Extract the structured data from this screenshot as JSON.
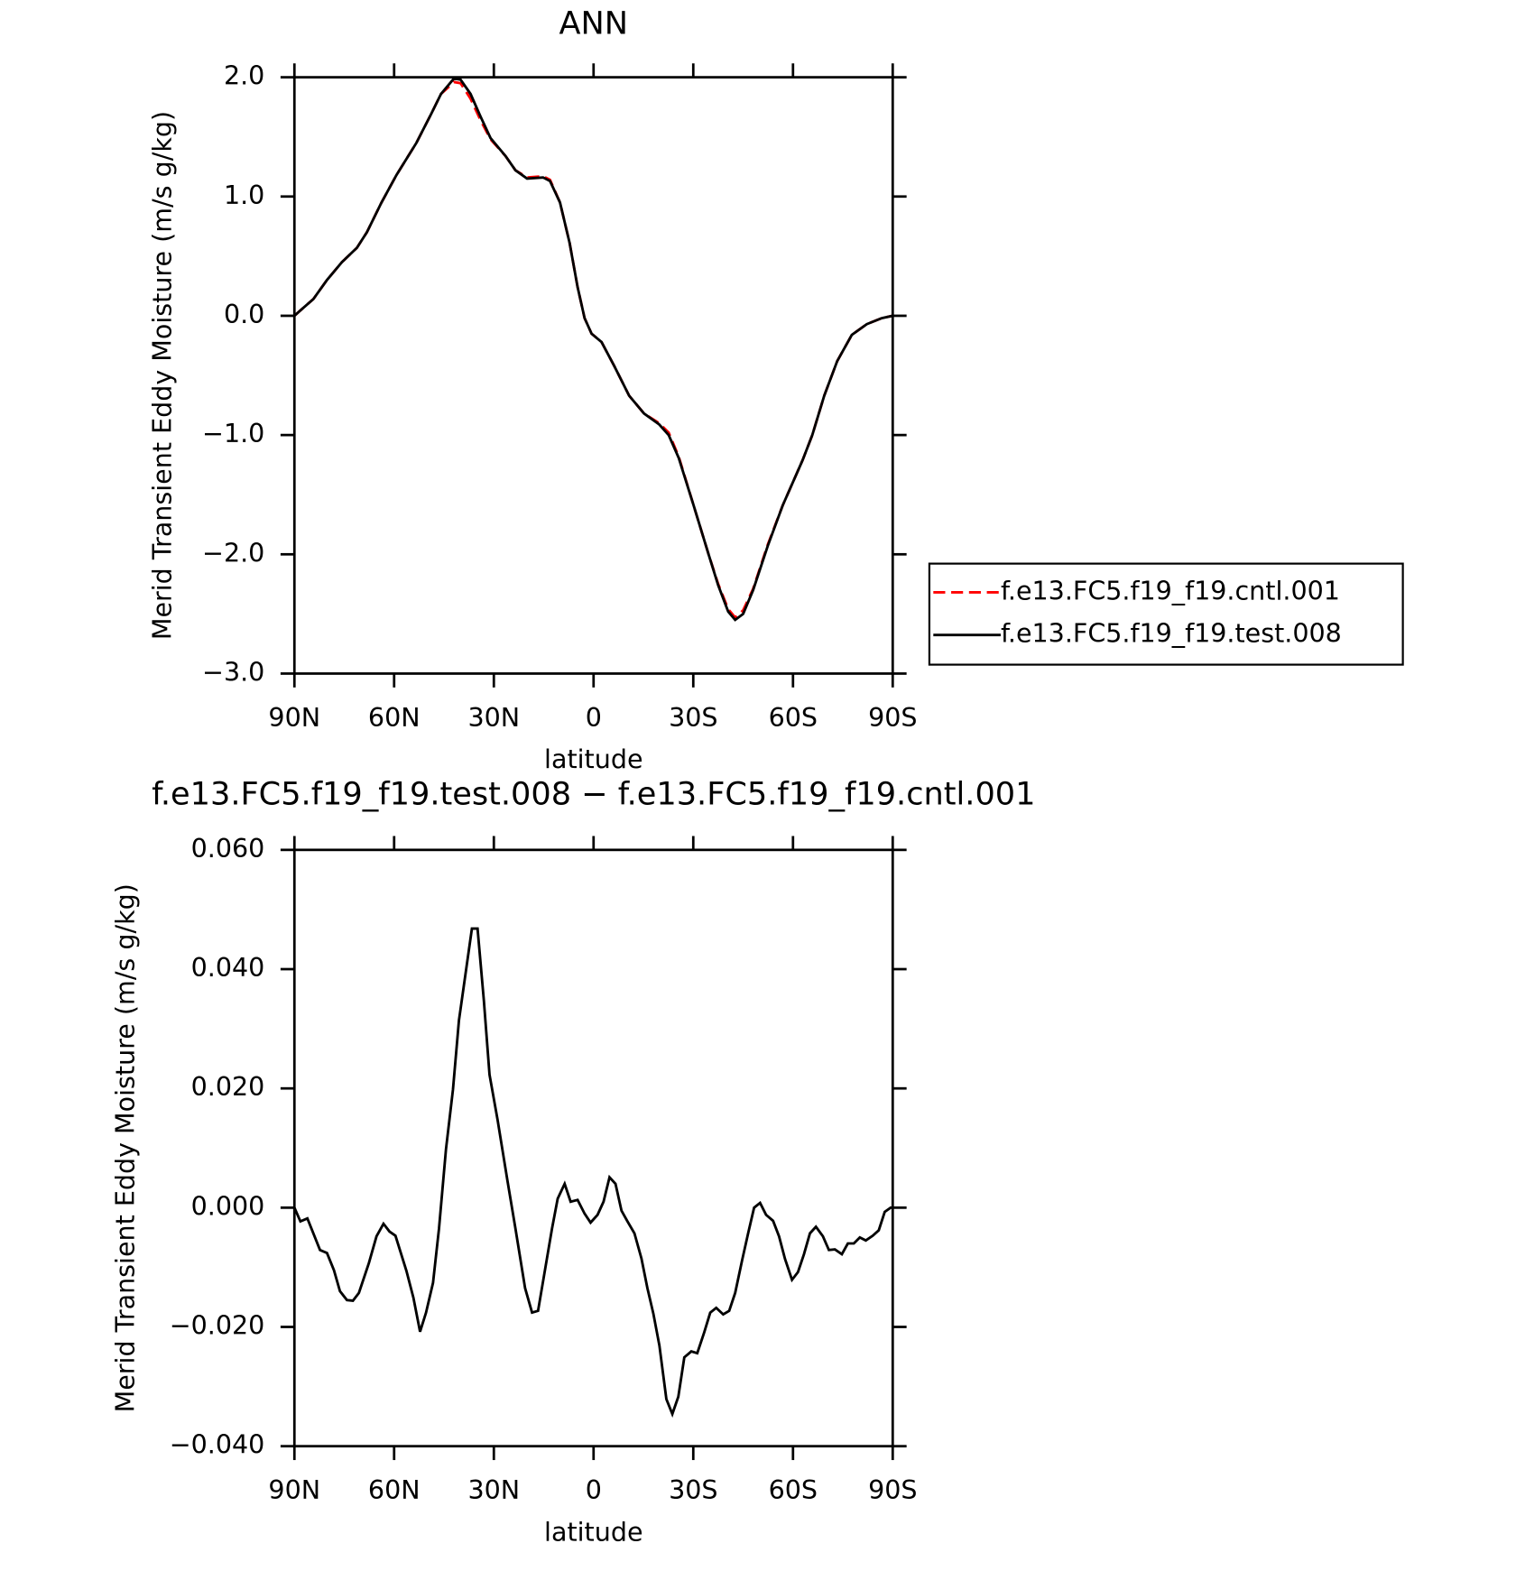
{
  "chart_data": [
    {
      "type": "line",
      "title": "ANN",
      "xlabel": "latitude",
      "ylabel": "Merid Transient Eddy Moisture (m/s g/kg)",
      "x": [
        90,
        87.6,
        84.3,
        80.2,
        75.7,
        71.2,
        68.2,
        63.8,
        59.3,
        53.3,
        48.9,
        45.9,
        42,
        40,
        37,
        34,
        31,
        26.5,
        23.5,
        20,
        15.2,
        13.1,
        10.1,
        7.2,
        4.8,
        2.7,
        0.6,
        -2.4,
        -6.2,
        -10.7,
        -15.2,
        -19.7,
        -22.6,
        -25.6,
        -30.1,
        -34.6,
        -37.5,
        -40.5,
        -42.6,
        -45,
        -48,
        -52.4,
        -56.9,
        -62.9,
        -65.8,
        -69.4,
        -73.3,
        -77.7,
        -82.2,
        -86.7,
        -90
      ],
      "series": [
        {
          "name": "f.e13.FC5.f19_f19.cntl.001",
          "color": "#ff0000",
          "style": "dashed",
          "values": [
            0,
            0.06,
            0.14,
            0.3,
            0.45,
            0.57,
            0.7,
            0.95,
            1.18,
            1.45,
            1.69,
            1.86,
            1.96,
            1.95,
            1.82,
            1.64,
            1.48,
            1.34,
            1.22,
            1.16,
            1.17,
            1.14,
            0.95,
            0.61,
            0.24,
            -0.02,
            -0.15,
            -0.22,
            -0.42,
            -0.67,
            -0.82,
            -0.9,
            -0.98,
            -1.18,
            -1.59,
            -2.0,
            -2.25,
            -2.46,
            -2.53,
            -2.47,
            -2.29,
            -1.92,
            -1.59,
            -1.21,
            -1.0,
            -0.67,
            -0.38,
            -0.16,
            -0.07,
            -0.02,
            0
          ]
        },
        {
          "name": "f.e13.FC5.f19_f19.test.008",
          "color": "#000000",
          "style": "solid",
          "values": [
            0,
            0.06,
            0.14,
            0.3,
            0.45,
            0.57,
            0.7,
            0.95,
            1.18,
            1.45,
            1.69,
            1.86,
            1.99,
            1.98,
            1.86,
            1.67,
            1.49,
            1.34,
            1.22,
            1.15,
            1.16,
            1.13,
            0.95,
            0.61,
            0.24,
            -0.02,
            -0.15,
            -0.22,
            -0.42,
            -0.67,
            -0.82,
            -0.91,
            -1.0,
            -1.19,
            -1.59,
            -2.0,
            -2.26,
            -2.48,
            -2.55,
            -2.5,
            -2.3,
            -1.93,
            -1.59,
            -1.21,
            -1.0,
            -0.67,
            -0.38,
            -0.16,
            -0.07,
            -0.02,
            0
          ]
        }
      ],
      "xlim": [
        90,
        -90
      ],
      "xticks": [
        {
          "value": 90,
          "label": "90N"
        },
        {
          "value": 60,
          "label": "60N"
        },
        {
          "value": 30,
          "label": "30N"
        },
        0,
        {
          "value": -30,
          "label": "30S"
        },
        {
          "value": -60,
          "label": "60S"
        },
        {
          "value": -90,
          "label": "90S"
        }
      ],
      "ylim": [
        -3,
        2
      ],
      "yticks": [
        {
          "value": 2,
          "label": "2.0"
        },
        {
          "value": 1,
          "label": "1.0"
        },
        {
          "value": 0,
          "label": "0.0"
        },
        {
          "value": -1,
          "label": "−1.0"
        },
        {
          "value": -2,
          "label": "−2.0"
        },
        {
          "value": -3,
          "label": "−3.0"
        }
      ],
      "legend": "right"
    },
    {
      "type": "line",
      "title": "f.e13.FC5.f19_f19.test.008 − f.e13.FC5.f19_f19.cntl.001",
      "xlabel": "latitude",
      "ylabel": "Merid Transient Eddy Moisture (m/s g/kg)",
      "x": [
        90,
        88.2,
        86.1,
        82.3,
        80.2,
        78.1,
        76.3,
        74.2,
        72.4,
        70.6,
        67.6,
        65.3,
        63.2,
        61.4,
        59.6,
        56.3,
        54.2,
        52.2,
        50.4,
        48.3,
        46.5,
        44.4,
        42.3,
        40.5,
        38.4,
        36.6,
        34.9,
        33,
        31.3,
        28.9,
        25.9,
        23.5,
        20.6,
        18.5,
        16.7,
        12.5,
        10.8,
        8.7,
        6.9,
        4.8,
        2.7,
        0.9,
        -1.2,
        -3,
        -4.8,
        -6.6,
        -8.4,
        -10.2,
        -12.3,
        -14.4,
        -16.2,
        -18,
        -19.8,
        -21.9,
        -23.7,
        -25.5,
        -27.3,
        -29.4,
        -31.2,
        -33.3,
        -35.1,
        -36.9,
        -39,
        -40.8,
        -42.6,
        -44.7,
        -46.5,
        -48.3,
        -50.1,
        -51.9,
        -54,
        -55.8,
        -57.6,
        -59.7,
        -61.5,
        -63.3,
        -65.1,
        -66.9,
        -69,
        -70.8,
        -72.6,
        -74.7,
        -76.5,
        -78.3,
        -80.1,
        -81.9,
        -84,
        -85.8,
        -87.6,
        -89.4,
        -90
      ],
      "series": [
        {
          "color": "#000000",
          "style": "solid",
          "values": [
            0,
            -0.0023,
            -0.0018,
            -0.0071,
            -0.0076,
            -0.0105,
            -0.014,
            -0.0155,
            -0.0156,
            -0.0143,
            -0.0093,
            -0.0048,
            -0.0027,
            -0.004,
            -0.0047,
            -0.0106,
            -0.0151,
            -0.0208,
            -0.0176,
            -0.0126,
            -0.0035,
            0.0098,
            0.0198,
            0.0314,
            0.0397,
            0.0468,
            0.0468,
            0.0347,
            0.0223,
            0.0148,
            0.0045,
            -0.0035,
            -0.0135,
            -0.0176,
            -0.0173,
            -0.0035,
            0.0015,
            0.004,
            0.001,
            0.0013,
            -0.001,
            -0.0025,
            -0.0012,
            0.001,
            0.0051,
            0.004,
            -0.0005,
            -0.0023,
            -0.0043,
            -0.0085,
            -0.0135,
            -0.0178,
            -0.0231,
            -0.0321,
            -0.0346,
            -0.0317,
            -0.0251,
            -0.0241,
            -0.0244,
            -0.0209,
            -0.0176,
            -0.0168,
            -0.0179,
            -0.0173,
            -0.0143,
            -0.0088,
            -0.0043,
            0,
            0.0008,
            -0.0012,
            -0.0022,
            -0.0048,
            -0.0086,
            -0.0121,
            -0.0108,
            -0.0078,
            -0.0043,
            -0.0032,
            -0.0048,
            -0.0071,
            -0.007,
            -0.0078,
            -0.006,
            -0.006,
            -0.005,
            -0.0055,
            -0.0047,
            -0.0038,
            -0.0007,
            0,
            0
          ]
        }
      ],
      "xlim": [
        90,
        -90
      ],
      "xticks": [
        {
          "value": 90,
          "label": "90N"
        },
        {
          "value": 60,
          "label": "60N"
        },
        {
          "value": 30,
          "label": "30N"
        },
        0,
        {
          "value": -30,
          "label": "30S"
        },
        {
          "value": -60,
          "label": "60S"
        },
        {
          "value": -90,
          "label": "90S"
        }
      ],
      "ylim": [
        -0.04,
        0.06
      ],
      "yticks": [
        {
          "value": 0.06,
          "label": "0.060"
        },
        {
          "value": 0.04,
          "label": "0.040"
        },
        {
          "value": 0.02,
          "label": "0.020"
        },
        {
          "value": 0,
          "label": "0.000"
        },
        {
          "value": -0.02,
          "label": "−0.020"
        },
        {
          "value": -0.04,
          "label": "−0.040"
        }
      ]
    }
  ]
}
